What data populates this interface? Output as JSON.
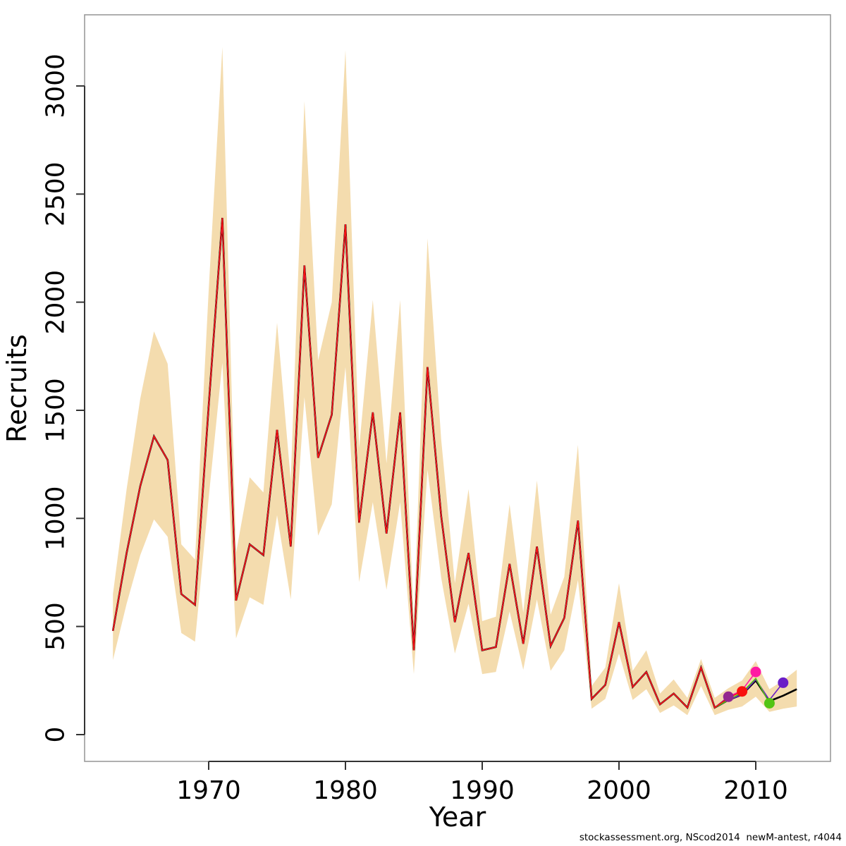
{
  "footer": {
    "text": "stockassessment.org, NScod2014  newM-antest, r4044"
  },
  "chart_data": {
    "type": "line",
    "title": "",
    "xlabel": "Year",
    "ylabel": "Recruits",
    "grid": false,
    "legend": "none",
    "xlim": [
      1961.5,
      2014.5
    ],
    "ylim": [
      0,
      3200
    ],
    "xticks": [
      1970,
      1980,
      1990,
      2000,
      2010
    ],
    "yticks": [
      0,
      500,
      1000,
      1500,
      2000,
      2500,
      3000
    ],
    "x": [
      1963,
      1964,
      1965,
      1966,
      1967,
      1968,
      1969,
      1970,
      1971,
      1972,
      1973,
      1974,
      1975,
      1976,
      1977,
      1978,
      1979,
      1980,
      1981,
      1982,
      1983,
      1984,
      1985,
      1986,
      1987,
      1988,
      1989,
      1990,
      1991,
      1992,
      1993,
      1994,
      1995,
      1996,
      1997,
      1998,
      1999,
      2000,
      2001,
      2002,
      2003,
      2004,
      2005,
      2006,
      2007,
      2008,
      2009,
      2010,
      2011,
      2012,
      2013
    ],
    "series": [
      {
        "name": "recruitment-estimate",
        "color": "#000000",
        "stroke_width": 2.6,
        "values": [
          480,
          840,
          1150,
          1380,
          1270,
          650,
          600,
          1520,
          2390,
          620,
          880,
          830,
          1410,
          870,
          2170,
          1280,
          1480,
          2360,
          980,
          1490,
          930,
          1490,
          390,
          1700,
          1010,
          520,
          840,
          390,
          405,
          790,
          420,
          870,
          410,
          540,
          990,
          165,
          230,
          520,
          220,
          290,
          140,
          190,
          125,
          310,
          125,
          160,
          185,
          250,
          155,
          180,
          210
        ]
      }
    ],
    "band": {
      "name": "confidence-band",
      "color": "#F4DCAE",
      "lower": [
        345,
        605,
        830,
        995,
        915,
        470,
        430,
        1095,
        1720,
        445,
        635,
        600,
        1015,
        625,
        1560,
        920,
        1065,
        1700,
        705,
        1075,
        670,
        1075,
        280,
        1225,
        725,
        375,
        605,
        280,
        290,
        570,
        300,
        625,
        295,
        390,
        715,
        120,
        165,
        375,
        160,
        210,
        100,
        135,
        90,
        225,
        90,
        115,
        130,
        175,
        105,
        120,
        130
      ],
      "upper": [
        650,
        1135,
        1555,
        1865,
        1715,
        880,
        810,
        2055,
        3180,
        840,
        1190,
        1120,
        1905,
        1175,
        2930,
        1730,
        2000,
        3165,
        1325,
        2010,
        1255,
        2010,
        525,
        2295,
        1365,
        700,
        1135,
        525,
        545,
        1065,
        565,
        1175,
        555,
        730,
        1340,
        225,
        310,
        700,
        295,
        390,
        190,
        255,
        170,
        350,
        170,
        215,
        250,
        340,
        210,
        250,
        300
      ]
    },
    "retro": [
      {
        "name": "retro-peel-2008",
        "color": "#93278F",
        "end_year": 2008,
        "stroke_width": 1.6,
        "dot_radius": 7.5,
        "tail_overrides": {
          "2008": 175
        }
      },
      {
        "name": "retro-peel-2009",
        "color": "#F8110D",
        "end_year": 2009,
        "stroke_width": 1.6,
        "dot_radius": 7.5,
        "tail_overrides": {
          "2008": 170,
          "2009": 200
        }
      },
      {
        "name": "retro-peel-2010",
        "color": "#FF1AA3",
        "end_year": 2010,
        "stroke_width": 1.6,
        "dot_radius": 7.5,
        "tail_overrides": {
          "2008": 175,
          "2009": 205,
          "2010": 290
        }
      },
      {
        "name": "retro-peel-2011",
        "color": "#53C414",
        "end_year": 2011,
        "stroke_width": 1.6,
        "dot_radius": 7.5,
        "tail_overrides": {
          "2009": 195,
          "2010": 260,
          "2011": 145
        }
      },
      {
        "name": "retro-peel-2012",
        "color": "#6B1EC7",
        "end_year": 2012,
        "stroke_width": 1.6,
        "dot_radius": 7.5,
        "tail_overrides": {
          "2010": 255,
          "2011": 160,
          "2012": 240
        }
      }
    ]
  }
}
